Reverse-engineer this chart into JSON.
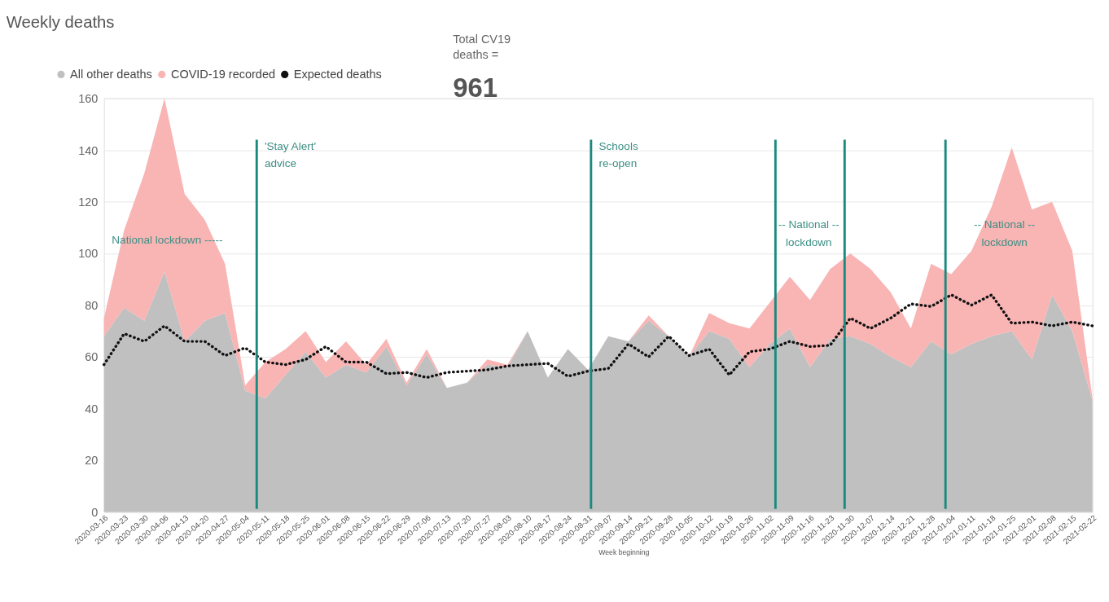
{
  "chart_data": {
    "type": "area",
    "title": "Weekly deaths",
    "xlabel": "Week beginning",
    "stacked": true,
    "x": [
      "2020-03-16",
      "2020-03-23",
      "2020-03-30",
      "2020-04-06",
      "2020-04-13",
      "2020-04-20",
      "2020-04-27",
      "2020-05-04",
      "2020-05-11",
      "2020-05-18",
      "2020-05-25",
      "2020-06-01",
      "2020-06-08",
      "2020-06-15",
      "2020-06-22",
      "2020-06-29",
      "2020-07-06",
      "2020-07-13",
      "2020-07-20",
      "2020-07-27",
      "2020-08-03",
      "2020-08-10",
      "2020-08-17",
      "2020-08-24",
      "2020-08-31",
      "2020-09-07",
      "2020-09-14",
      "2020-09-21",
      "2020-09-28",
      "2020-10-05",
      "2020-10-12",
      "2020-10-19",
      "2020-10-26",
      "2020-11-02",
      "2020-11-09",
      "2020-11-16",
      "2020-11-23",
      "2020-11-30",
      "2020-12-07",
      "2020-12-14",
      "2020-12-21",
      "2020-12-28",
      "2021-01-04",
      "2021-01-11",
      "2021-01-18",
      "2021-01-25",
      "2021-02-01",
      "2021-02-08",
      "2021-02-15",
      "2021-02-22"
    ],
    "series": [
      {
        "name": "All other deaths",
        "color": "#c0c0c0",
        "values": [
          68,
          79,
          74,
          93,
          66,
          74,
          77,
          47,
          44,
          53,
          62,
          52,
          57,
          54,
          64,
          49,
          61,
          48,
          50,
          57,
          56,
          70,
          52,
          63,
          55,
          68,
          66,
          74,
          68,
          60,
          70,
          67,
          56,
          65,
          71,
          56,
          67,
          68,
          65,
          60,
          56,
          66,
          61,
          65,
          68,
          70,
          59,
          84,
          70,
          43
        ]
      },
      {
        "name": "COVID-19 recorded",
        "color": "#f9b4b4",
        "values": [
          7,
          30,
          57,
          67,
          57,
          39,
          19,
          2,
          14,
          10,
          8,
          6,
          9,
          3,
          3,
          1,
          2,
          0,
          0,
          2,
          1,
          0,
          0,
          0,
          0,
          0,
          0,
          2,
          0,
          0,
          7,
          6,
          15,
          16,
          20,
          26,
          27,
          32,
          29,
          25,
          15,
          30,
          31,
          36,
          50,
          71,
          58,
          36,
          31,
          1
        ]
      },
      {
        "name": "Expected deaths",
        "color": "#111111",
        "type": "line",
        "line_style": "dotted",
        "values": [
          57,
          69,
          66,
          72,
          66,
          66,
          60.5,
          63.5,
          58,
          57,
          59,
          64,
          58,
          58,
          53.5,
          54,
          52,
          54,
          54.5,
          55,
          56.5,
          57,
          57.5,
          52.5,
          54.5,
          55.5,
          65,
          60,
          68,
          60.5,
          63,
          53,
          62,
          63,
          66,
          64,
          64.5,
          75,
          71,
          75,
          80.5,
          79.5,
          84,
          80,
          84,
          73,
          73.5,
          72,
          73.5,
          72
        ]
      }
    ],
    "xlim": [
      "2020-03-16",
      "2021-02-22"
    ],
    "xticks": [
      "2020-03-16",
      "2020-03-23",
      "2020-03-30",
      "2020-04-06",
      "2020-04-13",
      "2020-04-20",
      "2020-04-27",
      "2020-05-04",
      "2020-05-11",
      "2020-05-18",
      "2020-05-25",
      "2020-06-01",
      "2020-06-08",
      "2020-06-15",
      "2020-06-22",
      "2020-06-29",
      "2020-07-06",
      "2020-07-13",
      "2020-07-20",
      "2020-07-27",
      "2020-08-03",
      "2020-08-10",
      "2020-08-17",
      "2020-08-24",
      "2020-08-31",
      "2020-09-07",
      "2020-09-14",
      "2020-09-21",
      "2020-09-28",
      "2020-10-05",
      "2020-10-12",
      "2020-10-19",
      "2020-10-26",
      "2020-11-02",
      "2020-11-09",
      "2020-11-16",
      "2020-11-23",
      "2020-11-30",
      "2020-12-07",
      "2020-12-14",
      "2020-12-21",
      "2020-12-28",
      "2021-01-04",
      "2021-01-11",
      "2021-01-18",
      "2021-01-25",
      "2021-02-01",
      "2021-02-08",
      "2021-02-15",
      "2021-02-22"
    ],
    "ylim": [
      0,
      160
    ],
    "yticks": [
      0,
      20,
      40,
      60,
      80,
      100,
      120,
      140,
      160
    ],
    "grid": "y",
    "legend": "top left",
    "ref_lines": [
      {
        "axis": "x",
        "value": "2020-05-08",
        "label": "'Stay Alert'\nadvice",
        "color": "#1a8a7e"
      },
      {
        "axis": "x",
        "value": "2020-09-01",
        "label": "Schools\nre-open",
        "color": "#1a8a7e"
      },
      {
        "axis": "x",
        "value": "2020-11-04",
        "color": "#1a8a7e"
      },
      {
        "axis": "x",
        "value": "2020-11-28",
        "color": "#1a8a7e"
      },
      {
        "axis": "x",
        "value": "2021-01-02",
        "color": "#1a8a7e"
      }
    ],
    "annotations": [
      "Total CV19\ndeaths =",
      "961",
      "National lockdown -----",
      "-- National --\nlockdown",
      "-- National --\nlockdown"
    ]
  }
}
